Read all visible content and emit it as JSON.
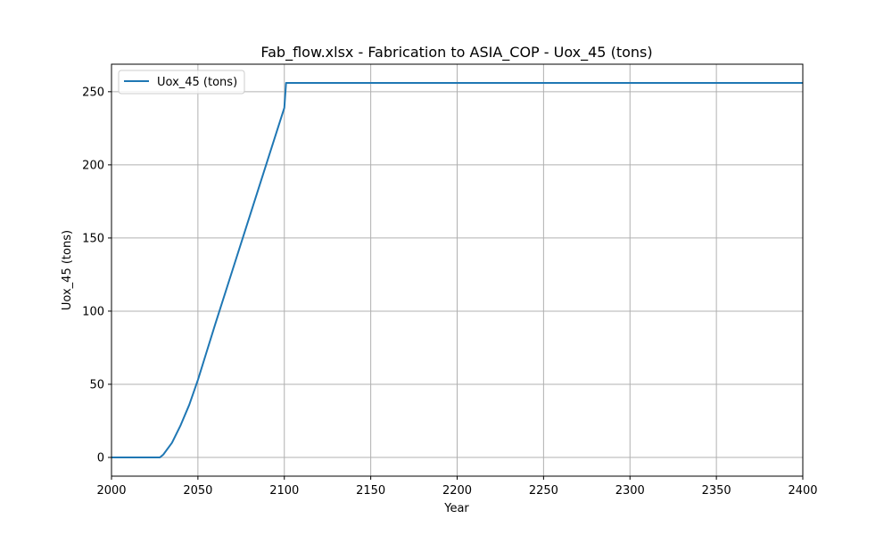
{
  "chart_data": {
    "type": "line",
    "title": "Fab_flow.xlsx - Fabrication to ASIA_COP - Uox_45 (tons)",
    "xlabel": "Year",
    "ylabel": "Uox_45 (tons)",
    "xlim": [
      2000,
      2400
    ],
    "ylim": [
      -12.8,
      268.8
    ],
    "x_ticks": [
      2000,
      2050,
      2100,
      2150,
      2200,
      2250,
      2300,
      2350,
      2400
    ],
    "y_ticks": [
      0,
      50,
      100,
      150,
      200,
      250
    ],
    "grid": true,
    "legend": "upper left",
    "series": [
      {
        "name": "Uox_45 (tons)",
        "color": "#1f77b4",
        "x": [
          2000,
          2028,
          2030,
          2035,
          2040,
          2045,
          2050,
          2055,
          2060,
          2070,
          2080,
          2090,
          2100,
          2101,
          2150,
          2200,
          2250,
          2300,
          2350,
          2400
        ],
        "y": [
          0,
          0,
          2,
          10,
          22,
          36,
          53,
          72,
          91,
          128,
          165,
          202,
          239,
          256,
          256,
          256,
          256,
          256,
          256,
          256
        ]
      }
    ]
  }
}
